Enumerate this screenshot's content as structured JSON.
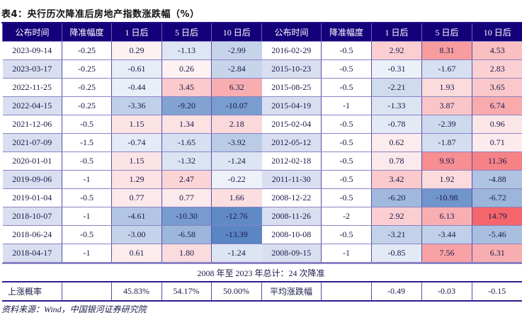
{
  "title": "表4：央行历次降准后房地产指数涨跌幅（%）",
  "headers": [
    "公布时间",
    "降准幅度",
    "1 日后",
    "5 日后",
    "10 日后"
  ],
  "left_rows": [
    {
      "date": "2023-09-14",
      "cut": "-0.25",
      "d1": "0.29",
      "d5": "-1.13",
      "d10": "-2.99"
    },
    {
      "date": "2023-03-17",
      "cut": "-0.25",
      "d1": "-0.61",
      "d5": "0.26",
      "d10": "-2.84"
    },
    {
      "date": "2022-11-25",
      "cut": "-0.25",
      "d1": "-0.44",
      "d5": "3.45",
      "d10": "6.32"
    },
    {
      "date": "2022-04-15",
      "cut": "-0.25",
      "d1": "-3.36",
      "d5": "-9.20",
      "d10": "-10.07"
    },
    {
      "date": "2021-12-06",
      "cut": "-0.5",
      "d1": "1.15",
      "d5": "1.34",
      "d10": "2.18"
    },
    {
      "date": "2021-07-09",
      "cut": "-1.5",
      "d1": "-0.74",
      "d5": "-1.65",
      "d10": "-3.92"
    },
    {
      "date": "2020-01-01",
      "cut": "-0.5",
      "d1": "1.15",
      "d5": "-1.32",
      "d10": "-1.24"
    },
    {
      "date": "2019-09-06",
      "cut": "-1",
      "d1": "1.29",
      "d5": "2.47",
      "d10": "-0.22"
    },
    {
      "date": "2019-01-04",
      "cut": "-0.5",
      "d1": "0.77",
      "d5": "0.77",
      "d10": "1.66"
    },
    {
      "date": "2018-10-07",
      "cut": "-1",
      "d1": "-4.61",
      "d5": "-10.30",
      "d10": "-12.76"
    },
    {
      "date": "2018-06-24",
      "cut": "-0.5",
      "d1": "-3.00",
      "d5": "-6.58",
      "d10": "-13.39"
    },
    {
      "date": "2018-04-17",
      "cut": "-1",
      "d1": "0.61",
      "d5": "1.80",
      "d10": "-1.24"
    }
  ],
  "right_rows": [
    {
      "date": "2016-02-29",
      "cut": "-0.5",
      "d1": "2.92",
      "d5": "8.31",
      "d10": "4.53"
    },
    {
      "date": "2015-10-23",
      "cut": "-0.5",
      "d1": "-0.31",
      "d5": "-1.67",
      "d10": "2.83"
    },
    {
      "date": "2015-08-25",
      "cut": "-0.5",
      "d1": "-2.21",
      "d5": "1.93",
      "d10": "3.65"
    },
    {
      "date": "2015-04-19",
      "cut": "-1",
      "d1": "-1.33",
      "d5": "3.87",
      "d10": "6.74"
    },
    {
      "date": "2015-02-04",
      "cut": "-0.5",
      "d1": "-0.78",
      "d5": "-2.39",
      "d10": "0.96"
    },
    {
      "date": "2012-05-12",
      "cut": "-0.5",
      "d1": "0.62",
      "d5": "-1.87",
      "d10": "0.71"
    },
    {
      "date": "2012-02-18",
      "cut": "-0.5",
      "d1": "0.78",
      "d5": "9.93",
      "d10": "11.36"
    },
    {
      "date": "2011-11-30",
      "cut": "-0.5",
      "d1": "3.42",
      "d5": "1.92",
      "d10": "-4.88"
    },
    {
      "date": "2008-12-22",
      "cut": "-0.5",
      "d1": "-6.20",
      "d5": "-10.98",
      "d10": "-6.72"
    },
    {
      "date": "2008-11-26",
      "cut": "-2",
      "d1": "2.92",
      "d5": "6.13",
      "d10": "14.79"
    },
    {
      "date": "2008-10-08",
      "cut": "-0.5",
      "d1": "-3.21",
      "d5": "-3.44",
      "d10": "-5.46"
    },
    {
      "date": "2008-09-15",
      "cut": "-1",
      "d1": "-0.85",
      "d5": "7.56",
      "d10": "6.31"
    }
  ],
  "summary": "2008 年至 2023 年总计：24 次降准",
  "stats": {
    "rise_label": "上涨概率",
    "rise_d1": "45.83%",
    "rise_d5": "54.17%",
    "rise_d10": "50.00%",
    "avg_label": "平均涨跌幅",
    "avg_d1": "-0.49",
    "avg_d5": "-0.03",
    "avg_d10": "-0.15"
  },
  "source": "资料来源：Wind，中国银河证券研究院",
  "colors": {
    "header": "#14007a",
    "positive_max": "#f4666b",
    "negative_max": "#5a86c4",
    "date_alt": "#d9dff0"
  }
}
